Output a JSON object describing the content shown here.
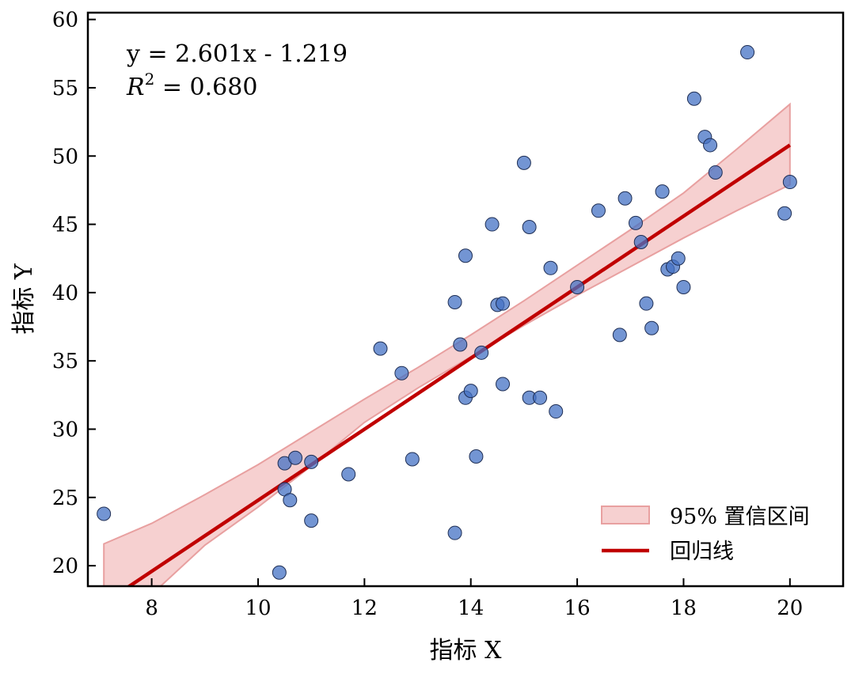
{
  "chart_data": {
    "type": "scatter",
    "xlabel": "指标 X",
    "ylabel": "指标 Y",
    "xlim": [
      6.8,
      21.0
    ],
    "ylim": [
      18.5,
      60.5
    ],
    "xticks": [
      8,
      10,
      12,
      14,
      16,
      18,
      20
    ],
    "yticks": [
      20,
      25,
      30,
      35,
      40,
      45,
      50,
      55,
      60
    ],
    "grid": false,
    "legend_position": "lower-right",
    "annotations": {
      "equation": "y = 2.601x - 1.219",
      "r2_symbol": "R",
      "r2_exponent": "2",
      "r2_value": " = 0.680"
    },
    "regression": {
      "slope": 2.601,
      "intercept": -1.219,
      "x_range": [
        7.1,
        20.0
      ],
      "color": "#c00000"
    },
    "confidence_band": {
      "x": [
        7.1,
        8.0,
        9.0,
        10.0,
        11.0,
        12.0,
        13.0,
        14.0,
        15.0,
        16.0,
        17.0,
        18.0,
        19.0,
        20.0
      ],
      "lower": [
        15.0,
        17.9,
        21.5,
        24.3,
        27.3,
        30.5,
        33.0,
        35.3,
        37.6,
        39.8,
        41.9,
        44.0,
        46.0,
        47.9
      ],
      "upper": [
        21.6,
        23.1,
        25.2,
        27.4,
        29.8,
        32.2,
        34.5,
        36.9,
        39.4,
        42.0,
        44.6,
        47.3,
        50.5,
        53.8
      ],
      "fill": "#e88a8a",
      "edge": "#e8a0a0"
    },
    "points": {
      "color": "#4472c4",
      "x": [
        7.1,
        10.4,
        10.5,
        10.5,
        10.6,
        10.7,
        11.0,
        11.0,
        11.7,
        12.3,
        12.7,
        12.9,
        13.7,
        13.7,
        13.8,
        13.9,
        13.9,
        14.0,
        14.1,
        14.2,
        14.4,
        14.5,
        14.6,
        14.6,
        15.0,
        15.1,
        15.1,
        15.3,
        15.5,
        15.6,
        16.0,
        16.4,
        16.8,
        16.9,
        17.1,
        17.2,
        17.3,
        17.4,
        17.6,
        17.7,
        17.8,
        17.9,
        18.0,
        18.2,
        18.4,
        18.5,
        18.6,
        19.2,
        19.9,
        20.0
      ],
      "y": [
        23.8,
        19.5,
        27.5,
        25.6,
        24.8,
        27.9,
        27.6,
        23.3,
        26.7,
        35.9,
        34.1,
        27.8,
        39.3,
        22.4,
        36.2,
        42.7,
        32.3,
        32.8,
        28.0,
        35.6,
        45.0,
        39.1,
        33.3,
        39.2,
        49.5,
        44.8,
        32.3,
        32.3,
        41.8,
        31.3,
        40.4,
        46.0,
        36.9,
        46.9,
        45.1,
        43.7,
        39.2,
        37.4,
        47.4,
        41.7,
        41.9,
        42.5,
        40.4,
        54.2,
        51.4,
        50.8,
        48.8,
        57.6,
        45.8,
        48.1
      ]
    },
    "legend": [
      {
        "label": "95% 置信区间",
        "kind": "band"
      },
      {
        "label": "回归线",
        "kind": "line"
      }
    ]
  }
}
